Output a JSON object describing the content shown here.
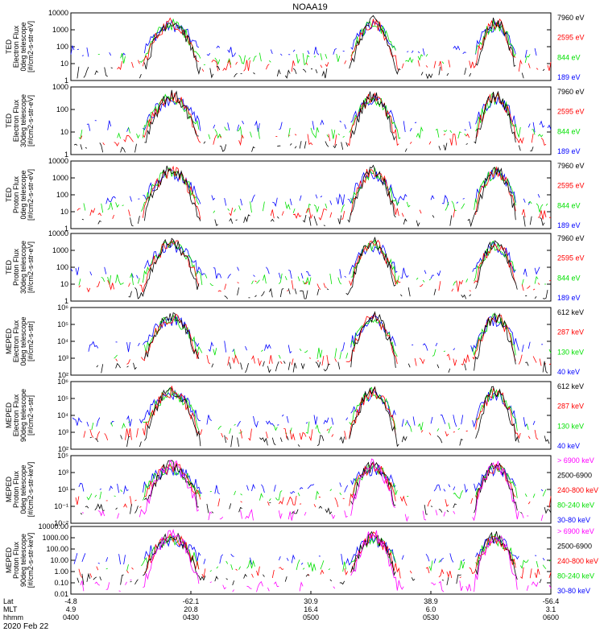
{
  "title": "NOAA19",
  "date_label": "2020 Feb 22",
  "colors": {
    "black": "#000000",
    "red": "#ff0000",
    "green": "#00e000",
    "blue": "#0000ff",
    "magenta": "#ff00ff"
  },
  "chart_data": [
    {
      "type": "line",
      "ylabel": [
        "TED",
        "Electron Flux",
        "0deg telescope",
        "[#/cm2-s-str-eV]"
      ],
      "scale": "log",
      "ymin": 1,
      "ymax": 10000,
      "ticks": [
        "10000",
        "1000",
        "100",
        "10",
        "1"
      ],
      "legend": [
        {
          "name": "7960 eV",
          "color": "black"
        },
        {
          "name": "2595 eV",
          "color": "red"
        },
        {
          "name": "844 eV",
          "color": "green"
        },
        {
          "name": "189 eV",
          "color": "blue"
        }
      ]
    },
    {
      "type": "line",
      "ylabel": [
        "TED",
        "Electron Flux",
        "30deg telescope",
        "[#/cm2-s-str-eV]"
      ],
      "scale": "log",
      "ymin": 1,
      "ymax": 1000,
      "ticks": [
        "1000",
        "100",
        "10",
        "1"
      ],
      "legend": [
        {
          "name": "7960 eV",
          "color": "black"
        },
        {
          "name": "2595 eV",
          "color": "red"
        },
        {
          "name": "844 eV",
          "color": "green"
        },
        {
          "name": "189 eV",
          "color": "blue"
        }
      ]
    },
    {
      "type": "line",
      "ylabel": [
        "TED",
        "Proton Flux",
        "0deg telescope",
        "[#/cm2-s-str-eV]"
      ],
      "scale": "log",
      "ymin": 1,
      "ymax": 10000,
      "ticks": [
        "10000",
        "1000",
        "100",
        "10",
        "1"
      ],
      "legend": [
        {
          "name": "7960 eV",
          "color": "black"
        },
        {
          "name": "2595 eV",
          "color": "red"
        },
        {
          "name": "844 eV",
          "color": "green"
        },
        {
          "name": "189 eV",
          "color": "blue"
        }
      ]
    },
    {
      "type": "line",
      "ylabel": [
        "TED",
        "Proton Flux",
        "30deg telescope",
        "[#/cm2-s-str-eV]"
      ],
      "scale": "log",
      "ymin": 1,
      "ymax": 10000,
      "ticks": [
        "10000",
        "1000",
        "100",
        "10",
        "1"
      ],
      "legend": [
        {
          "name": "7960 eV",
          "color": "black"
        },
        {
          "name": "2595 eV",
          "color": "red"
        },
        {
          "name": "844 eV",
          "color": "green"
        },
        {
          "name": "189 eV",
          "color": "blue"
        }
      ]
    },
    {
      "type": "line",
      "ylabel": [
        "MEPED",
        "Electron Flux",
        "0deg telescope",
        "[#/cm2-s-str]"
      ],
      "scale": "log",
      "ymin": 100,
      "ymax": 1000000,
      "ticks": [
        "10⁶",
        "10⁵",
        "10⁴",
        "10³",
        "10²"
      ],
      "legend": [
        {
          "name": "612 keV",
          "color": "black"
        },
        {
          "name": "287 keV",
          "color": "red"
        },
        {
          "name": "130 keV",
          "color": "green"
        },
        {
          "name": "40 keV",
          "color": "blue"
        }
      ]
    },
    {
      "type": "line",
      "ylabel": [
        "MEPED",
        "Electron Flux",
        "90deg telescope",
        "[#/cm2-s-str]"
      ],
      "scale": "log",
      "ymin": 100,
      "ymax": 1000000,
      "ticks": [
        "10⁶",
        "10⁵",
        "10⁴",
        "10³",
        "10²"
      ],
      "legend": [
        {
          "name": "612 keV",
          "color": "black"
        },
        {
          "name": "287 keV",
          "color": "red"
        },
        {
          "name": "130 keV",
          "color": "green"
        },
        {
          "name": "40 keV",
          "color": "blue"
        }
      ]
    },
    {
      "type": "line",
      "ylabel": [
        "MEPED",
        "Proton Flux",
        "0deg telescope",
        "[#/cm2-s-str-keV]"
      ],
      "scale": "log",
      "ymin": 0.01,
      "ymax": 100000,
      "ticks": [
        "10⁵",
        "10³",
        "10¹",
        "10⁻¹",
        "10⁻²"
      ],
      "legend": [
        {
          "name": "> 6900 keV",
          "color": "magenta"
        },
        {
          "name": "2500-6900",
          "color": "black"
        },
        {
          "name": "240-800 keV",
          "color": "red"
        },
        {
          "name": "80-240 keV",
          "color": "green"
        },
        {
          "name": "30-80 keV",
          "color": "blue"
        }
      ]
    },
    {
      "type": "line",
      "ylabel": [
        "MEPED",
        "Proton Flux",
        "90deg telescope",
        "[#/cm2-s-str-keV]"
      ],
      "scale": "log",
      "ymin": 0.01,
      "ymax": 10000,
      "ticks": [
        "10000.00",
        "1000.00",
        "100.00",
        "10.00",
        "1.00",
        "0.10",
        "0.01"
      ],
      "legend": [
        {
          "name": "> 6900 keV",
          "color": "magenta"
        },
        {
          "name": "2500-6900",
          "color": "black"
        },
        {
          "name": "240-800 keV",
          "color": "red"
        },
        {
          "name": "80-240 keV",
          "color": "green"
        },
        {
          "name": "30-80 keV",
          "color": "blue"
        }
      ]
    }
  ],
  "x_axis": {
    "row_labels": [
      "Lat",
      "MLT",
      "hhmm"
    ],
    "ticks": [
      {
        "lat": "-4.8",
        "mlt": "4.9",
        "hhmm": "0400"
      },
      {
        "lat": "-62.1",
        "mlt": "20.8",
        "hhmm": "0430"
      },
      {
        "lat": "30.9",
        "mlt": "16.4",
        "hhmm": "0500"
      },
      {
        "lat": "38.9",
        "mlt": "6.0",
        "hhmm": "0530"
      },
      {
        "lat": "-56.4",
        "mlt": "3.1",
        "hhmm": "0600"
      }
    ]
  }
}
